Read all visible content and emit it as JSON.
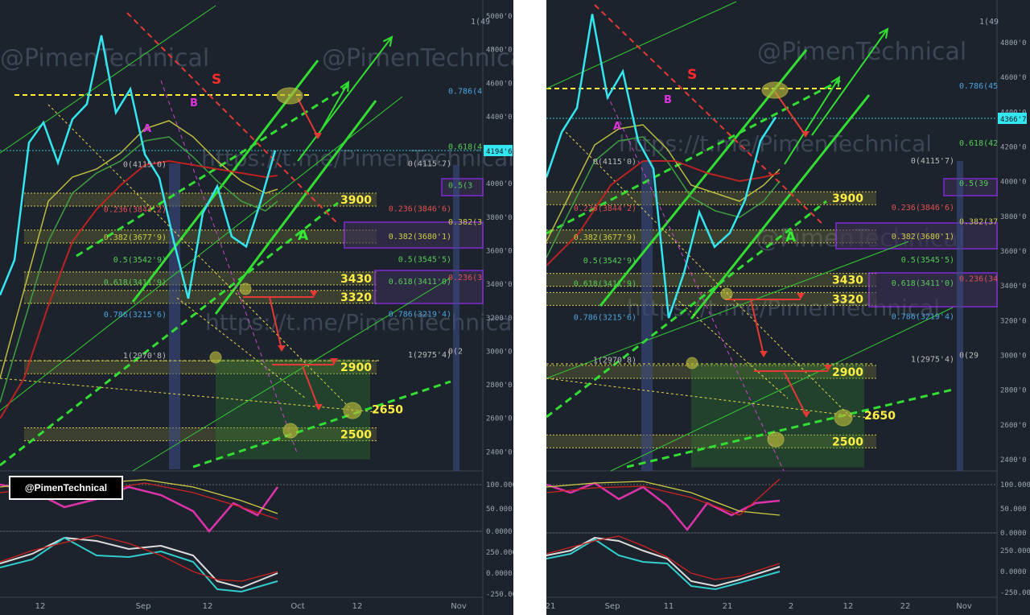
{
  "watermark": {
    "handle": "@PimenTechnical",
    "url": "https://t.me/PimenTechnical"
  },
  "brand_label": "@PimenTechnical",
  "colors": {
    "background": "#1d232c",
    "price_line": "#33e6f0",
    "fib_band": "#8a8a3a",
    "green_channel": "#33dd33",
    "target_zone": "#2e7d32",
    "red_resistance": "#e53935",
    "purple_box": "#9b30ff",
    "level_label": "#ffee44"
  },
  "left": {
    "axis": {
      "price_ticks": [
        "5000'0",
        "4800'0",
        "4600'0",
        "4400'0",
        "4200'0",
        "4000'0",
        "3800'0",
        "3600'0",
        "3400'0",
        "3200'0",
        "3000'0",
        "2800'0",
        "2600'0",
        "2400'0"
      ],
      "current_price": "4194'6",
      "top_label": "1(49",
      "date_ticks": [
        "12",
        "Sep",
        "12",
        "Oct",
        "12",
        "Nov"
      ],
      "osc1_ticks": [
        "100.000",
        "50.000",
        "0.0000"
      ],
      "osc2_ticks": [
        "250.000",
        "0.0000",
        "-250.00"
      ]
    },
    "levels": [
      "3900",
      "3430",
      "3320",
      "2900",
      "2650",
      "2500"
    ],
    "wave_labels": {
      "s": "S",
      "a": "A",
      "b": "B",
      "a_green": "A"
    },
    "fib_left": [
      "0(4115'0)",
      "0.236(3844'2)",
      "0.382(3677'9)",
      "0.5(3542'9)",
      "0.618(3411'9)",
      "0.786(3215'6)",
      "1(2970'8)"
    ],
    "fib_right": [
      "0(4115'7)",
      "0.236(3846'6)",
      "0.382(3680'1)",
      "0.5(3545'5)",
      "0.618(3411'0)",
      "0.786(3219'4)",
      "1(2975'4)"
    ],
    "fib_edge": [
      "0.786(4",
      "0.618(4",
      "0.5(3",
      "0.382(3",
      "0.236(3",
      "0(2"
    ]
  },
  "right": {
    "axis": {
      "price_ticks": [
        "4800'0",
        "4600'0",
        "4400'0",
        "4200'0",
        "4000'0",
        "3800'0",
        "3600'0",
        "3400'0",
        "3200'0",
        "3000'0",
        "2800'0",
        "2600'0",
        "2400'0"
      ],
      "current_price": "4366'7",
      "top_label": "1(49",
      "date_ticks": [
        "21",
        "Sep",
        "11",
        "21",
        "2",
        "12",
        "22",
        "Nov"
      ],
      "osc1_ticks": [
        "100.000",
        "50.000",
        "0.0000"
      ],
      "osc2_ticks": [
        "250.000",
        "0.0000",
        "-250.00"
      ]
    },
    "levels": [
      "3900",
      "3430",
      "3320",
      "2900",
      "2650",
      "2500"
    ],
    "wave_labels": {
      "s": "S",
      "a": "A",
      "b": "B",
      "a_green": "A"
    },
    "fib_left": [
      "0(4115'0)",
      "0.236(3844'2)",
      "0.382(3677'9)",
      "0.5(3542'9)",
      "0.618(3411'9)",
      "0.786(3215'6)",
      "1(2970'8)"
    ],
    "fib_right": [
      "0(4115'7)",
      "0.236(3846'6)",
      "0.382(3680'1)",
      "0.5(3545'5)",
      "0.618(3411'0)",
      "0.786(3219'4)",
      "1(2975'4)"
    ],
    "fib_edge": [
      "0.786(45",
      "0.618(42",
      "0.5(39",
      "0.382(37",
      "0.236(34",
      "0(29"
    ]
  },
  "chart_data": [
    {
      "type": "line",
      "series": [
        {
          "values": [
            3330,
            3540,
            4240,
            4360,
            4120,
            4380,
            4470,
            4880,
            4420,
            4560,
            4170,
            4030,
            3650,
            3310,
            3820,
            3980,
            3680,
            3620,
            3890,
            4194
          ]
        }
      ],
      "ylim": [
        2400,
        5000
      ],
      "levels": [
        3900,
        3430,
        3320,
        2900,
        2650,
        2500
      ],
      "current_price": 4194.6
    },
    {
      "type": "line",
      "series": [
        {
          "values": [
            4020,
            4280,
            4420,
            4960,
            4480,
            4630,
            4230,
            4070,
            3210,
            3470,
            3820,
            3620,
            3700,
            3890,
            4230,
            4367
          ]
        }
      ],
      "ylim": [
        2350,
        4950
      ],
      "levels": [
        3900,
        3430,
        3320,
        2900,
        2650,
        2500
      ],
      "current_price": 4366.7
    }
  ]
}
